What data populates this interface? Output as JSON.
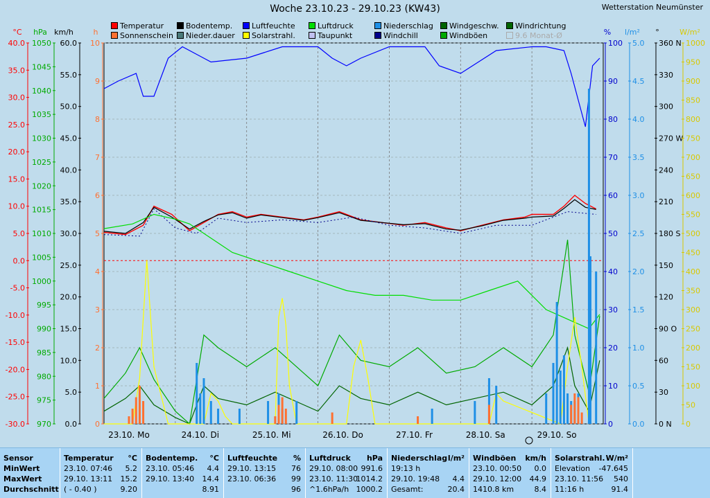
{
  "station": "Wetterstation Neumünster",
  "title": "Woche 23.10.23 - 29.10.23 (KW43)",
  "legend": [
    {
      "label": "Temperatur",
      "color": "#ff0000"
    },
    {
      "label": "Bodentemp.",
      "color": "#000000"
    },
    {
      "label": "Luftfeuchte",
      "color": "#0000ff"
    },
    {
      "label": "Luftdruck",
      "color": "#00dd00"
    },
    {
      "label": "Niederschlag",
      "color": "#1e8fe6"
    },
    {
      "label": "Windgeschw.",
      "color": "#006400"
    },
    {
      "label": "Windrichtung",
      "color": "#006400"
    },
    {
      "label": "Sonnenschein",
      "color": "#ff7030"
    },
    {
      "label": "Nieder.dauer",
      "color": "#4a7a7a"
    },
    {
      "label": "Solarstrahl.",
      "color": "#ffff00"
    },
    {
      "label": "Taupunkt",
      "color": "#c0c0f0"
    },
    {
      "label": "Windchill",
      "color": "#00008b"
    },
    {
      "label": "Windböen",
      "color": "#00aa00"
    },
    {
      "label": "9.6 Monat-Ø",
      "color": "#ffffff",
      "disabled": true
    }
  ],
  "axes": {
    "celsius": {
      "unit": "°C",
      "ticks": [
        "40.0",
        "35.0",
        "30.0",
        "25.0",
        "20.0",
        "15.0",
        "10.0",
        "5.0",
        "0.0",
        "-5.0",
        "-10.0",
        "-15.0",
        "-20.0",
        "-25.0",
        "-30.0"
      ],
      "color": "#ff0000"
    },
    "hpa": {
      "unit": "hPa",
      "ticks": [
        "1050",
        "1045",
        "1040",
        "1035",
        "1030",
        "1025",
        "1020",
        "1015",
        "1010",
        "1005",
        "1000",
        "995",
        "990",
        "985",
        "980",
        "975",
        "970"
      ],
      "color": "#00aa00"
    },
    "kmh": {
      "unit": "km/h",
      "ticks": [
        "60.0",
        "55.0",
        "50.0",
        "45.0",
        "40.0",
        "35.0",
        "30.0",
        "25.0",
        "20.0",
        "15.0",
        "10.0",
        "5.0",
        "0.0"
      ],
      "color": "#000000"
    },
    "hours": {
      "unit": "h",
      "ticks": [
        "10",
        "9",
        "8",
        "7",
        "6",
        "5",
        "4",
        "3",
        "2",
        "1",
        "0"
      ],
      "color": "#ff7030"
    },
    "percent": {
      "unit": "%",
      "ticks": [
        "100",
        "90",
        "80",
        "70",
        "60",
        "50",
        "40",
        "30",
        "20",
        "10",
        "0"
      ],
      "color": "#0000cc"
    },
    "lm2": {
      "unit": "l/m²",
      "ticks": [
        "5.0",
        "4.5",
        "4.0",
        "3.5",
        "3.0",
        "2.5",
        "2.0",
        "1.5",
        "1.0",
        "0.5",
        "0.0"
      ],
      "color": "#1e8fe6"
    },
    "deg": {
      "unit": "°",
      "ticks": [
        "360 N",
        "330",
        "300",
        "270 W",
        "240",
        "210",
        "180 S",
        "150",
        "120",
        "90  O",
        "60",
        "30",
        "0  N"
      ],
      "color": "#000000"
    },
    "wm2": {
      "unit": "W/m²",
      "ticks": [
        "1000",
        "950",
        "900",
        "850",
        "800",
        "750",
        "700",
        "650",
        "600",
        "550",
        "500",
        "450",
        "400",
        "350",
        "300",
        "250",
        "200",
        "150",
        "100",
        "50",
        "0"
      ],
      "color": "#d8c800"
    }
  },
  "x_labels": [
    "23.10.  Mo",
    "24.10.  Di",
    "25.10.  Mi",
    "26.10.  Do",
    "27.10.  Fr",
    "28.10.  Sa",
    "29.10.  So"
  ],
  "chart_data": {
    "type": "line",
    "x_unit": "days (23.10.-29.10.)",
    "series": [
      {
        "name": "Temperatur",
        "unit": "°C",
        "x": [
          0,
          0.3,
          0.55,
          0.7,
          0.95,
          1.2,
          1.4,
          1.6,
          1.8,
          2.0,
          2.2,
          2.5,
          2.8,
          3.0,
          3.3,
          3.6,
          3.9,
          4.2,
          4.5,
          4.8,
          5.0,
          5.3,
          5.6,
          5.9,
          6.0,
          6.3,
          6.45,
          6.6,
          6.75,
          6.9
        ],
        "y": [
          5.2,
          4.8,
          6.5,
          10.0,
          8.5,
          5.5,
          7.0,
          8.5,
          9.0,
          8.0,
          8.5,
          8.0,
          7.5,
          8.0,
          9.0,
          7.5,
          7.0,
          6.5,
          7.0,
          6.0,
          5.5,
          6.5,
          7.5,
          8.0,
          8.5,
          8.5,
          10.0,
          12.0,
          10.5,
          9.5
        ]
      },
      {
        "name": "Bodentemp.",
        "unit": "°C",
        "x": [
          0,
          0.3,
          0.55,
          0.7,
          0.95,
          1.2,
          1.4,
          1.6,
          1.8,
          2.0,
          2.2,
          2.5,
          2.8,
          3.0,
          3.3,
          3.6,
          3.9,
          4.2,
          4.5,
          4.8,
          5.0,
          5.3,
          5.6,
          5.9,
          6.0,
          6.3,
          6.45,
          6.6,
          6.75,
          6.9
        ],
        "y": [
          5.4,
          5.0,
          7.0,
          9.8,
          8.0,
          5.8,
          7.2,
          8.4,
          8.8,
          7.8,
          8.4,
          7.9,
          7.4,
          7.9,
          8.8,
          7.4,
          7.0,
          6.6,
          6.8,
          5.8,
          5.6,
          6.4,
          7.4,
          7.8,
          8.0,
          8.2,
          9.6,
          11.2,
          9.8,
          9.4
        ]
      },
      {
        "name": "Taupunkt",
        "unit": "°C",
        "x": [
          0,
          0.5,
          0.7,
          1.0,
          1.3,
          1.6,
          2.0,
          2.5,
          3.0,
          3.5,
          4.0,
          4.5,
          5.0,
          5.5,
          6.0,
          6.5,
          6.9
        ],
        "y": [
          4.8,
          4.5,
          9.5,
          6.0,
          5.0,
          7.8,
          7.0,
          7.5,
          7.0,
          8.0,
          6.5,
          6.0,
          5.0,
          6.5,
          6.5,
          9.0,
          8.5
        ]
      },
      {
        "name": "Luftfeuchte",
        "unit": "%",
        "x": [
          0,
          0.2,
          0.45,
          0.55,
          0.7,
          0.9,
          1.1,
          1.3,
          1.5,
          2.0,
          2.5,
          3.0,
          3.2,
          3.4,
          3.6,
          4.0,
          4.5,
          4.7,
          5.0,
          5.5,
          6.0,
          6.2,
          6.45,
          6.55,
          6.75,
          6.85,
          6.95
        ],
        "y": [
          88,
          90,
          92,
          86,
          86,
          96,
          99,
          97,
          95,
          96,
          99,
          99,
          96,
          94,
          96,
          99,
          99,
          94,
          92,
          98,
          99,
          99,
          98,
          92,
          78,
          94,
          96
        ]
      },
      {
        "name": "Luftdruck",
        "unit": "hPa",
        "x": [
          0,
          0.4,
          0.7,
          1.0,
          1.2,
          1.5,
          1.8,
          2.2,
          2.6,
          3.0,
          3.4,
          3.8,
          4.2,
          4.6,
          5.0,
          5.4,
          5.8,
          6.2,
          6.5,
          6.8,
          6.95
        ],
        "y": [
          1011,
          1012,
          1014,
          1013,
          1012,
          1009,
          1006,
          1004,
          1002,
          1000,
          998,
          997,
          997,
          996,
          996,
          998,
          1000,
          994,
          992,
          990,
          993
        ]
      },
      {
        "name": "Windgeschw.",
        "unit": "km/h",
        "x": [
          0,
          0.3,
          0.5,
          0.7,
          1.0,
          1.2,
          1.4,
          1.6,
          2.0,
          2.4,
          2.8,
          3.0,
          3.3,
          3.6,
          4.0,
          4.4,
          4.8,
          5.2,
          5.6,
          6.0,
          6.3,
          6.5,
          6.6,
          6.8,
          6.95
        ],
        "y": [
          2,
          4,
          6,
          3,
          1,
          0,
          6,
          4,
          3,
          5,
          3,
          2,
          6,
          4,
          3,
          5,
          3,
          4,
          5,
          3,
          6,
          12,
          6,
          2,
          10
        ]
      },
      {
        "name": "Windböen",
        "unit": "km/h",
        "x": [
          0,
          0.3,
          0.5,
          0.7,
          1.0,
          1.2,
          1.4,
          1.6,
          2.0,
          2.4,
          2.8,
          3.0,
          3.3,
          3.6,
          4.0,
          4.4,
          4.8,
          5.2,
          5.6,
          6.0,
          6.3,
          6.5,
          6.6,
          6.8,
          6.95
        ],
        "y": [
          4,
          8,
          12,
          7,
          2,
          0,
          14,
          12,
          9,
          12,
          8,
          6,
          14,
          10,
          9,
          12,
          8,
          9,
          12,
          9,
          14,
          29,
          14,
          5,
          17
        ]
      },
      {
        "name": "Solarstrahl.",
        "unit": "W/m²",
        "x": [
          0,
          0.4,
          0.5,
          0.6,
          0.7,
          0.9,
          1.4,
          1.5,
          1.6,
          1.7,
          1.8,
          2.4,
          2.45,
          2.5,
          2.55,
          2.6,
          2.7,
          3.4,
          3.5,
          3.6,
          3.7,
          3.8,
          4.4,
          5.4,
          5.5,
          5.6,
          6.4,
          6.5,
          6.6,
          6.7,
          6.8
        ],
        "y": [
          0,
          0,
          120,
          430,
          150,
          0,
          0,
          80,
          60,
          20,
          0,
          0,
          280,
          330,
          260,
          100,
          0,
          0,
          150,
          220,
          120,
          0,
          0,
          0,
          80,
          60,
          0,
          150,
          280,
          150,
          0
        ]
      },
      {
        "name": "Niederschlag",
        "unit": "l/m²",
        "x": [
          1.3,
          1.35,
          1.4,
          1.5,
          1.6,
          1.9,
          2.3,
          2.45,
          2.5,
          2.7,
          4.6,
          5.2,
          5.4,
          5.5,
          6.2,
          6.3,
          6.35,
          6.4,
          6.45,
          6.5,
          6.55,
          6.6,
          6.65,
          6.8,
          6.82,
          6.9
        ],
        "y": [
          0.8,
          0.4,
          0.6,
          0.3,
          0.2,
          0.2,
          0.3,
          0.4,
          0.2,
          0.3,
          0.2,
          0.3,
          0.6,
          0.5,
          0.4,
          0.8,
          1.6,
          0.7,
          0.9,
          0.4,
          0.3,
          0.3,
          0.4,
          4.4,
          2.2,
          2.0
        ]
      },
      {
        "name": "Sonnenschein",
        "unit": "h",
        "x": [
          0.35,
          0.4,
          0.45,
          0.5,
          0.55,
          2.4,
          2.45,
          2.5,
          2.55,
          3.2,
          4.4,
          5.4,
          6.55,
          6.6,
          6.65,
          6.7
        ],
        "y": [
          0.2,
          0.4,
          0.7,
          1.0,
          0.6,
          0.2,
          0.5,
          0.7,
          0.4,
          0.3,
          0.2,
          0.5,
          0.5,
          0.8,
          0.7,
          0.3
        ]
      }
    ]
  },
  "stats": {
    "row_labels": {
      "sensor": "Sensor",
      "min": "MinWert",
      "max": "MaxWert",
      "avg": "Durchschnitt"
    },
    "columns": [
      {
        "name": "Temperatur",
        "unit": "°C",
        "min": [
          "23.10.  07:46",
          "5.2"
        ],
        "max": [
          "29.10.  13:11",
          "15.2"
        ],
        "avg": [
          "( - 0.40 )",
          "9.20"
        ]
      },
      {
        "name": "Bodentemp.",
        "unit": "°C",
        "min": [
          "23.10.  05:46",
          "4.4"
        ],
        "max": [
          "29.10.  13:40",
          "14.4"
        ],
        "avg": [
          "",
          "8.91"
        ]
      },
      {
        "name": "Luftfeuchte",
        "unit": "%",
        "min": [
          "29.10.  13:15",
          "76"
        ],
        "max": [
          "23.10.  06:36",
          "99"
        ],
        "avg": [
          "",
          "96"
        ]
      },
      {
        "name": "Luftdruck",
        "unit": "hPa",
        "min": [
          "29.10.  08:00",
          "991.6"
        ],
        "max": [
          "23.10.  11:30",
          "1014.2"
        ],
        "avg": [
          "^1.6hPa/h",
          "1000.2"
        ]
      },
      {
        "name": "Niederschlag",
        "unit": "l/m²",
        "min": [
          "19:13 h",
          ""
        ],
        "max": [
          "29.10.  19:48",
          "4.4"
        ],
        "avg": [
          "Gesamt:",
          "20.4"
        ]
      },
      {
        "name": "Windböen",
        "unit": "km/h",
        "min": [
          "23.10.  00:50",
          "0.0"
        ],
        "max": [
          "29.10.  12:00",
          "44.9"
        ],
        "avg": [
          "1410.8 km",
          "8.4"
        ]
      },
      {
        "name": "Solarstrahl.",
        "unit": "W/m²",
        "min": [
          "Elevation",
          "-47.645"
        ],
        "max": [
          "23.10.  11:56",
          "540"
        ],
        "avg": [
          "11:16 h",
          "91.4"
        ]
      }
    ]
  }
}
